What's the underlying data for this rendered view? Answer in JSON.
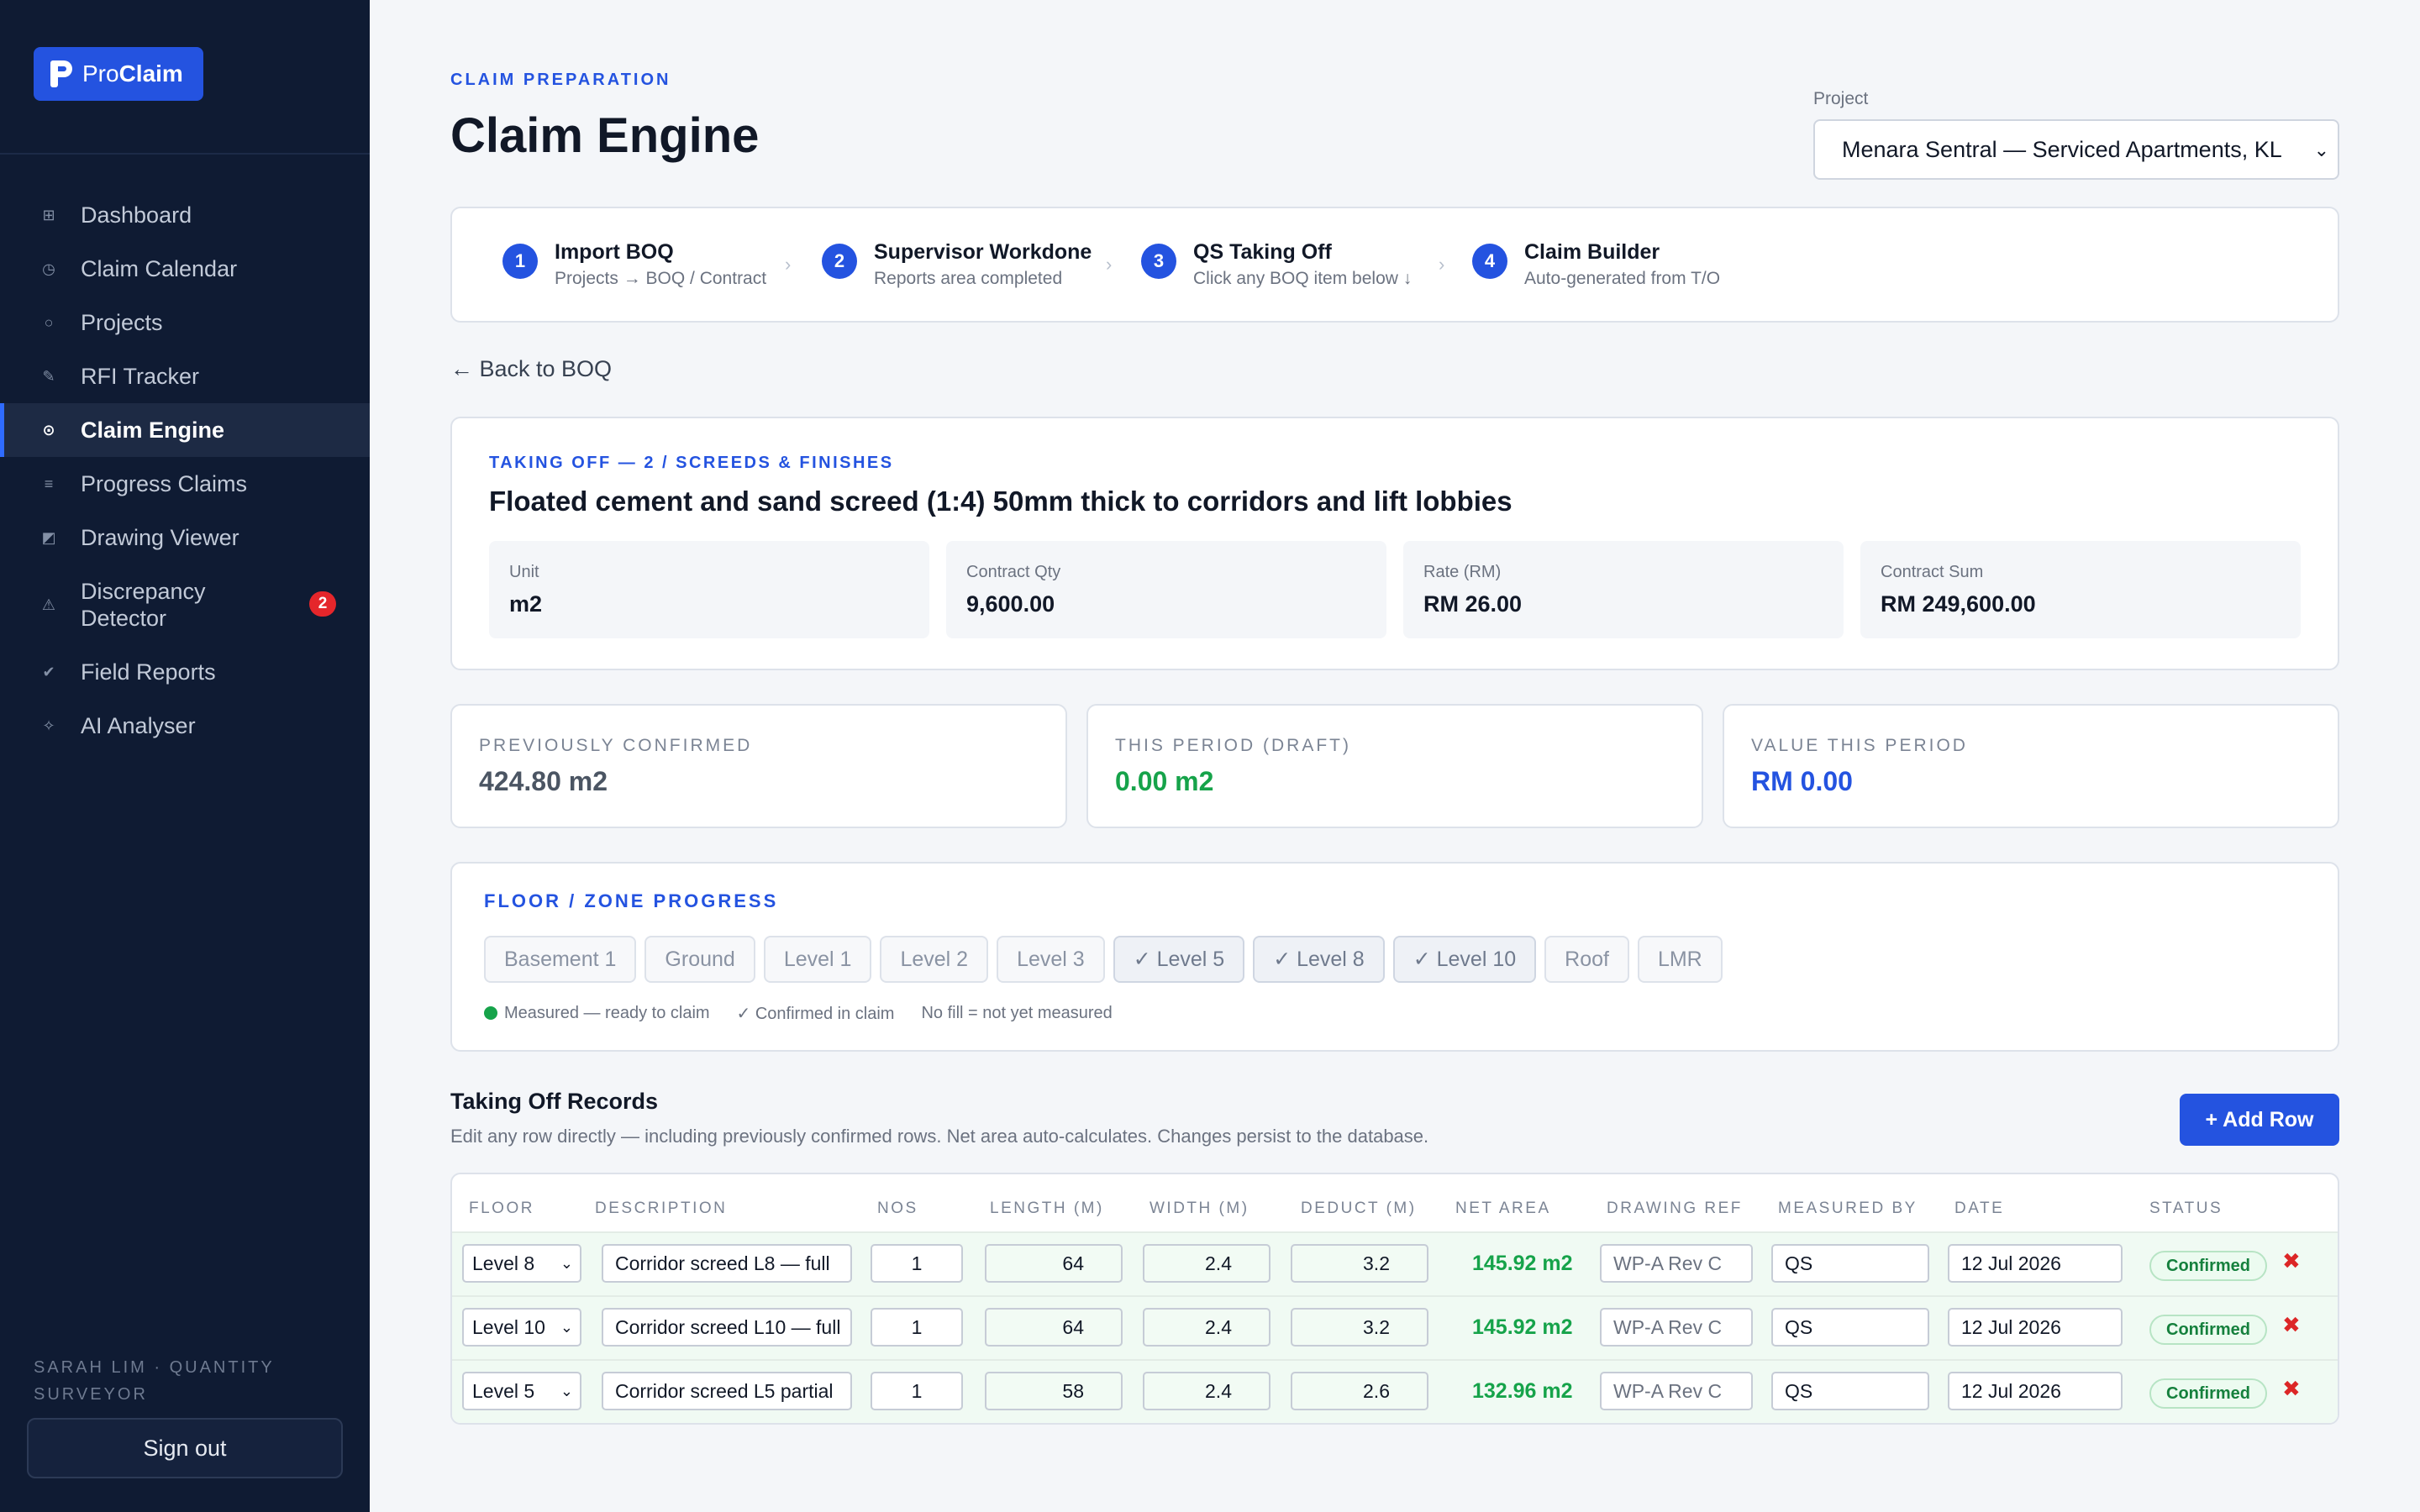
{
  "app": {
    "logo_pre": "Pro",
    "logo_bold": "Claim"
  },
  "sidebar": {
    "items": [
      {
        "label": "Dashboard",
        "icon": "grid-icon"
      },
      {
        "label": "Claim Calendar",
        "icon": "clock-icon"
      },
      {
        "label": "Projects",
        "icon": "circle-icon"
      },
      {
        "label": "RFI Tracker",
        "icon": "pencil-icon"
      },
      {
        "label": "Claim Engine",
        "icon": "target-icon",
        "active": true
      },
      {
        "label": "Progress Claims",
        "icon": "list-icon"
      },
      {
        "label": "Drawing Viewer",
        "icon": "image-icon"
      },
      {
        "label": "Discrepancy Detector",
        "icon": "warning-icon",
        "badge": "2"
      },
      {
        "label": "Field Reports",
        "icon": "check-icon"
      },
      {
        "label": "AI Analyser",
        "icon": "sparkle-icon"
      }
    ],
    "user": "SARAH LIM · QUANTITY SURVEYOR",
    "signout": "Sign out"
  },
  "header": {
    "eyebrow": "CLAIM PREPARATION",
    "title": "Claim Engine",
    "project_label": "Project",
    "project_value": "Menara Sentral — Serviced Apartments, KL"
  },
  "steps": [
    {
      "num": "1",
      "title": "Import BOQ",
      "sub": "Projects → BOQ / Contract"
    },
    {
      "num": "2",
      "title": "Supervisor Workdone",
      "sub": "Reports area completed"
    },
    {
      "num": "3",
      "title": "QS Taking Off",
      "sub": "Click any BOQ item below ↓"
    },
    {
      "num": "4",
      "title": "Claim Builder",
      "sub": "Auto-generated from T/O"
    }
  ],
  "back_link": "← Back to BOQ",
  "item": {
    "eyebrow": "TAKING OFF — 2 / SCREEDS & FINISHES",
    "title": "Floated cement and sand screed (1:4) 50mm thick to corridors and lift lobbies",
    "facts": [
      {
        "label": "Unit",
        "value": "m2"
      },
      {
        "label": "Contract Qty",
        "value": "9,600.00"
      },
      {
        "label": "Rate (RM)",
        "value": "RM 26.00"
      },
      {
        "label": "Contract Sum",
        "value": "RM 249,600.00"
      }
    ]
  },
  "stats": [
    {
      "label": "PREVIOUSLY CONFIRMED",
      "value": "424.80 m2",
      "color": "#4b5563"
    },
    {
      "label": "THIS PERIOD (DRAFT)",
      "value": "0.00 m2",
      "color": "#16a34a"
    },
    {
      "label": "VALUE THIS PERIOD",
      "value": "RM 0.00",
      "color": "#2453e0"
    }
  ],
  "zones": {
    "title": "FLOOR / ZONE PROGRESS",
    "chips": [
      {
        "label": "Basement 1",
        "confirmed": false
      },
      {
        "label": "Ground",
        "confirmed": false
      },
      {
        "label": "Level 1",
        "confirmed": false
      },
      {
        "label": "Level 2",
        "confirmed": false
      },
      {
        "label": "Level 3",
        "confirmed": false
      },
      {
        "label": "✓ Level 5",
        "confirmed": true
      },
      {
        "label": "✓ Level 8",
        "confirmed": true
      },
      {
        "label": "✓ Level 10",
        "confirmed": true
      },
      {
        "label": "Roof",
        "confirmed": false
      },
      {
        "label": "LMR",
        "confirmed": false
      }
    ],
    "legend": {
      "measured": "Measured — ready to claim",
      "confirmed": "✓ Confirmed in claim",
      "nofill": "No fill = not yet measured"
    }
  },
  "records": {
    "title": "Taking Off Records",
    "subtitle": "Edit any row directly — including previously confirmed rows. Net area auto-calculates. Changes persist to the database.",
    "add_button": "+ Add Row",
    "columns": [
      "FLOOR",
      "DESCRIPTION",
      "NOS",
      "LENGTH (M)",
      "WIDTH (M)",
      "DEDUCT (M)",
      "NET AREA",
      "DRAWING REF",
      "MEASURED BY",
      "DATE",
      "STATUS"
    ],
    "rows": [
      {
        "floor": "Level 8",
        "description": "Corridor screed L8 — full",
        "nos": "1",
        "length": "64",
        "width": "2.4",
        "deduct": "3.2",
        "net": "145.92 m2",
        "drawing": "WP-A Rev C",
        "measured_by": "QS",
        "date": "12 Jul 2026",
        "status": "Confirmed"
      },
      {
        "floor": "Level 10",
        "description": "Corridor screed L10 — full",
        "nos": "1",
        "length": "64",
        "width": "2.4",
        "deduct": "3.2",
        "net": "145.92 m2",
        "drawing": "WP-A Rev C",
        "measured_by": "QS",
        "date": "12 Jul 2026",
        "status": "Confirmed"
      },
      {
        "floor": "Level 5",
        "description": "Corridor screed L5 partial",
        "nos": "1",
        "length": "58",
        "width": "2.4",
        "deduct": "2.6",
        "net": "132.96 m2",
        "drawing": "WP-A Rev C",
        "measured_by": "QS",
        "date": "12 Jul 2026",
        "status": "Confirmed"
      }
    ]
  }
}
